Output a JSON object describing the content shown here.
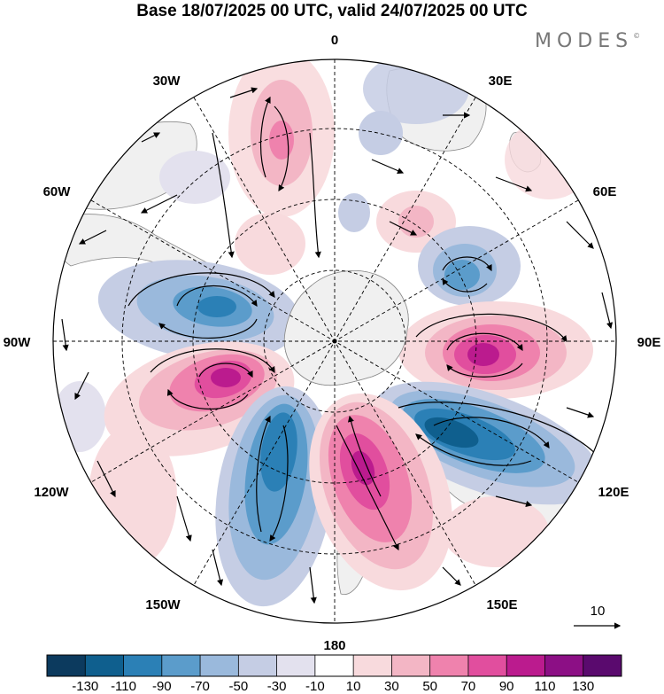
{
  "title": "Base 18/07/2025 00 UTC, valid 24/07/2025 00 UTC",
  "brand": "MODES",
  "brand_mark": "©",
  "longitude_labels": {
    "lon_0": "0",
    "lon_30e": "30E",
    "lon_60e": "60E",
    "lon_90e": "90E",
    "lon_120e": "120E",
    "lon_150e": "150E",
    "lon_180": "180",
    "lon_150w": "150W",
    "lon_120w": "120W",
    "lon_90w": "90W",
    "lon_60w": "60W",
    "lon_30w": "30W"
  },
  "reference_vector_label": "10",
  "colorbar": {
    "labels": [
      "-130",
      "-110",
      "-90",
      "-70",
      "-50",
      "-30",
      "-10",
      "10",
      "30",
      "50",
      "70",
      "90",
      "110",
      "130"
    ],
    "colors": [
      "#0c3a5e",
      "#0f5f8e",
      "#2b80b6",
      "#5b9ccb",
      "#9ab9dc",
      "#c5cde4",
      "#e3e1ee",
      "#ffffff",
      "#f8dadd",
      "#f3b6c5",
      "#ef82ad",
      "#e14e9e",
      "#bb1b8e",
      "#8c0f85",
      "#5a0a6e"
    ]
  },
  "map_colors": {
    "land": "#f0f0f0",
    "coastline": "#8a8a8a",
    "grid": "#000000"
  }
}
